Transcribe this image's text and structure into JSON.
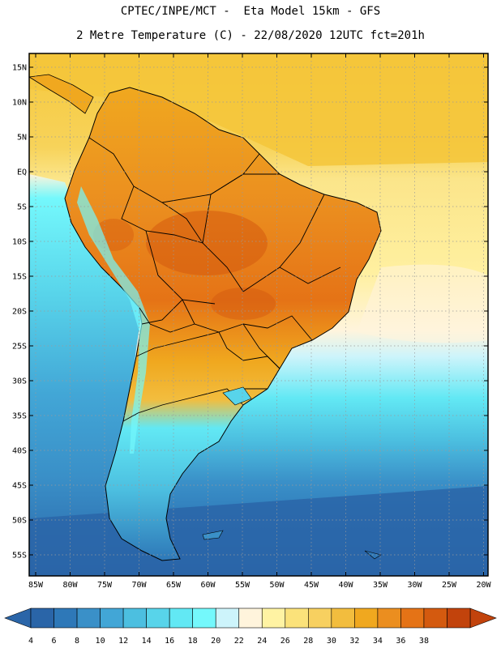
{
  "header": {
    "title_line1": "CPTEC/INPE/MCT -  Eta Model 15km - GFS",
    "title_line2": "2 Metre Temperature (C) - 22/08/2020 12UTC fct=201h"
  },
  "map": {
    "lat_labels": [
      "15N",
      "10N",
      "5N",
      "EQ",
      "5S",
      "10S",
      "15S",
      "20S",
      "25S",
      "30S",
      "35S",
      "40S",
      "45S",
      "50S",
      "55S"
    ],
    "lon_labels": [
      "85W",
      "80W",
      "75W",
      "70W",
      "65W",
      "60W",
      "55W",
      "50W",
      "45W",
      "40W",
      "35W",
      "30W",
      "25W",
      "20W"
    ]
  },
  "colorbar": {
    "labels": [
      "4",
      "6",
      "8",
      "10",
      "12",
      "14",
      "16",
      "18",
      "20",
      "22",
      "24",
      "26",
      "28",
      "30",
      "32",
      "34",
      "36",
      "38"
    ],
    "colors": [
      "#2a65a8",
      "#2e78b8",
      "#3a90c8",
      "#42a6d6",
      "#4cbfe0",
      "#58d4ea",
      "#62e8f4",
      "#74f8fc",
      "#cdf4fb",
      "#fff4dc",
      "#fff3a3",
      "#fbe27a",
      "#f7d060",
      "#f2bd3e",
      "#f0a81f",
      "#eb8e1f",
      "#e57316",
      "#d45a0f",
      "#c2430c"
    ],
    "low_arrow_color": "#2a65a8",
    "high_arrow_color": "#c2430c"
  }
}
